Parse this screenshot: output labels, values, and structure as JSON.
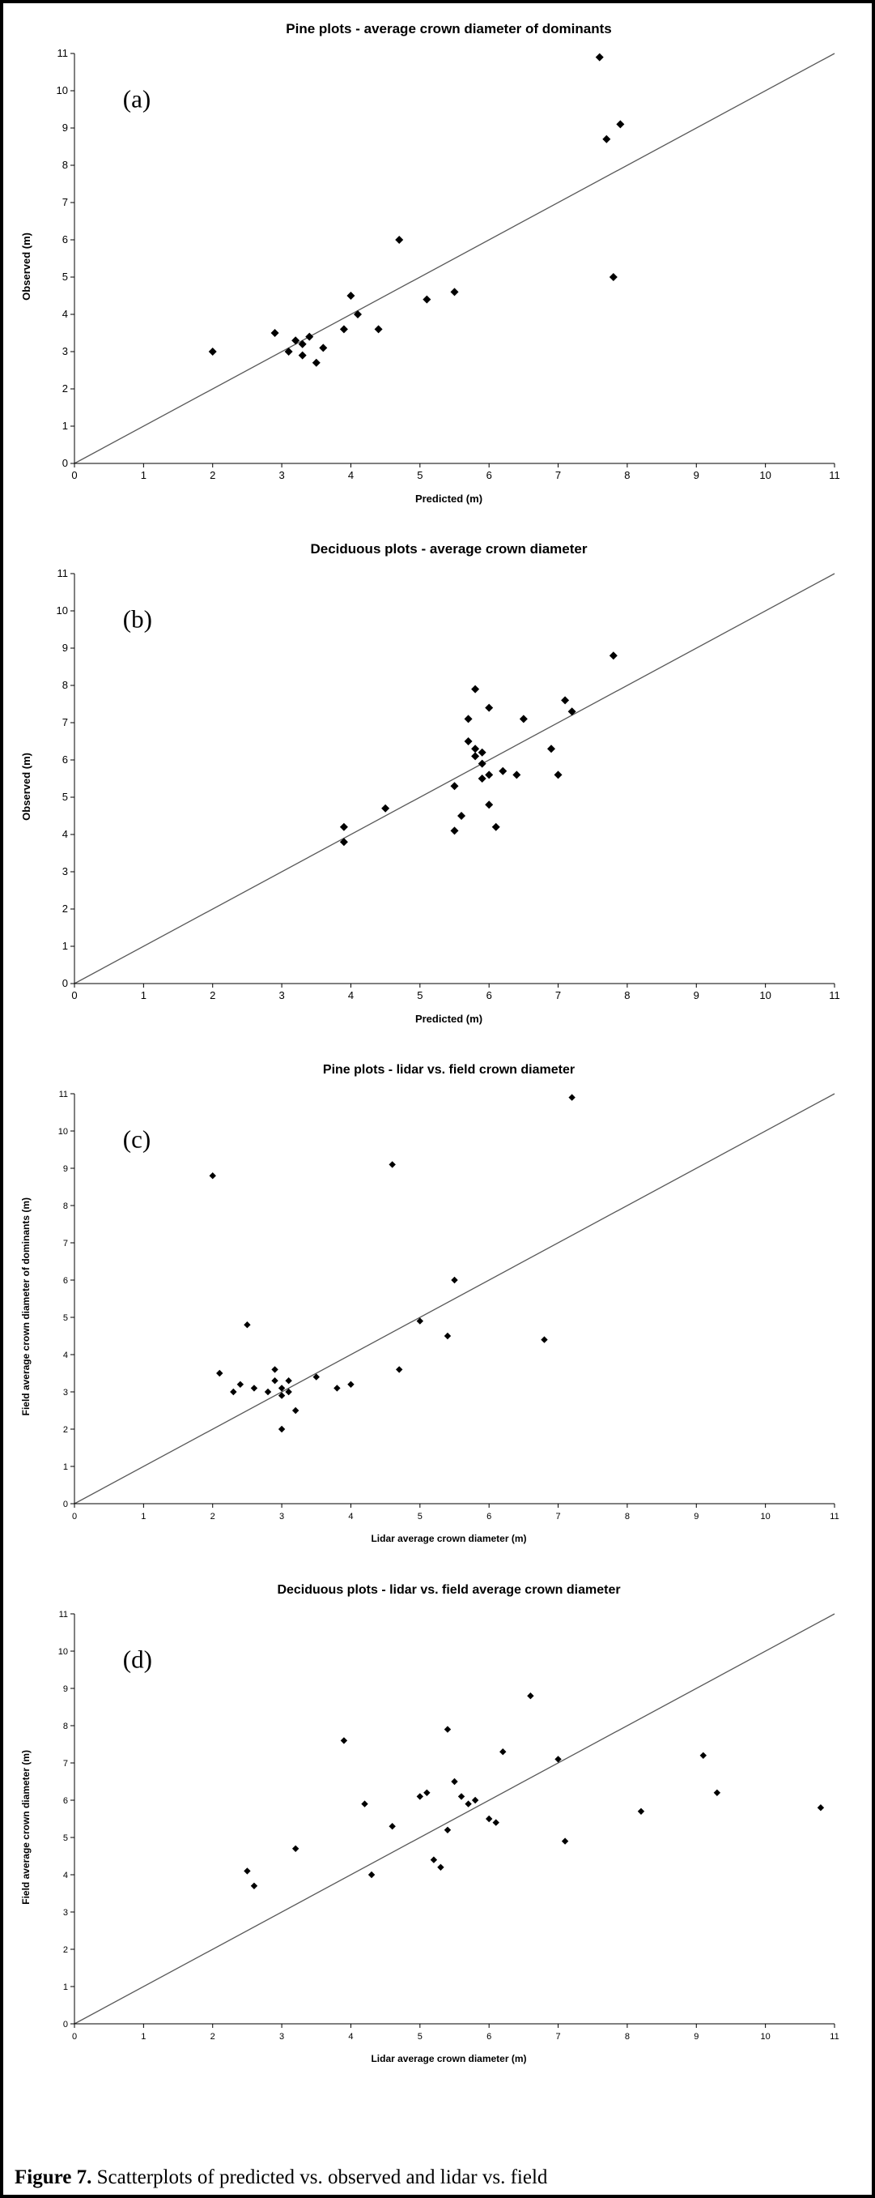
{
  "caption": {
    "label": "Figure 7.",
    "text": "Scatterplots of predicted vs. observed and lidar vs. field"
  },
  "chart_data": [
    {
      "type": "scatter",
      "panel_label": "(a)",
      "title": "Pine plots - average crown diameter of dominants",
      "xlabel": "Predicted (m)",
      "ylabel": "Observed (m)",
      "xlim": [
        0,
        11
      ],
      "ylim": [
        0,
        11
      ],
      "xticks": [
        0,
        1,
        2,
        3,
        4,
        5,
        6,
        7,
        8,
        9,
        10,
        11
      ],
      "yticks": [
        0,
        1,
        2,
        3,
        4,
        5,
        6,
        7,
        8,
        9,
        10,
        11
      ],
      "grid": false,
      "legend": false,
      "identity_line": true,
      "marker": "diamond",
      "marker_color": "#000000",
      "line_color": "#595959",
      "points": [
        [
          2.0,
          3.0
        ],
        [
          2.9,
          3.5
        ],
        [
          3.1,
          3.0
        ],
        [
          3.2,
          3.3
        ],
        [
          3.3,
          2.9
        ],
        [
          3.3,
          3.2
        ],
        [
          3.4,
          3.4
        ],
        [
          3.5,
          2.7
        ],
        [
          3.6,
          3.1
        ],
        [
          3.9,
          3.6
        ],
        [
          4.0,
          4.5
        ],
        [
          4.1,
          4.0
        ],
        [
          4.4,
          3.6
        ],
        [
          4.7,
          6.0
        ],
        [
          5.1,
          4.4
        ],
        [
          5.5,
          4.6
        ],
        [
          7.6,
          10.9
        ],
        [
          7.7,
          8.7
        ],
        [
          7.8,
          5.0
        ],
        [
          7.9,
          9.1
        ]
      ]
    },
    {
      "type": "scatter",
      "panel_label": "(b)",
      "title": "Deciduous plots - average crown diameter",
      "xlabel": "Predicted (m)",
      "ylabel": "Observed (m)",
      "xlim": [
        0,
        11
      ],
      "ylim": [
        0,
        11
      ],
      "xticks": [
        0,
        1,
        2,
        3,
        4,
        5,
        6,
        7,
        8,
        9,
        10,
        11
      ],
      "yticks": [
        0,
        1,
        2,
        3,
        4,
        5,
        6,
        7,
        8,
        9,
        10,
        11
      ],
      "grid": false,
      "legend": false,
      "identity_line": true,
      "marker": "diamond",
      "marker_color": "#000000",
      "line_color": "#595959",
      "points": [
        [
          3.9,
          4.2
        ],
        [
          3.9,
          3.8
        ],
        [
          4.5,
          4.7
        ],
        [
          5.5,
          4.1
        ],
        [
          5.5,
          5.3
        ],
        [
          5.6,
          4.5
        ],
        [
          5.7,
          7.1
        ],
        [
          5.7,
          6.5
        ],
        [
          5.8,
          7.9
        ],
        [
          5.8,
          6.3
        ],
        [
          5.8,
          6.1
        ],
        [
          5.9,
          6.2
        ],
        [
          5.9,
          5.9
        ],
        [
          5.9,
          5.5
        ],
        [
          6.0,
          7.4
        ],
        [
          6.0,
          5.6
        ],
        [
          6.0,
          4.8
        ],
        [
          6.1,
          4.2
        ],
        [
          6.2,
          5.7
        ],
        [
          6.4,
          5.6
        ],
        [
          6.5,
          7.1
        ],
        [
          6.9,
          6.3
        ],
        [
          7.0,
          5.6
        ],
        [
          7.1,
          7.6
        ],
        [
          7.2,
          7.3
        ],
        [
          7.8,
          8.8
        ]
      ]
    },
    {
      "type": "scatter",
      "panel_label": "(c)",
      "title": "Pine plots - lidar vs. field crown diameter",
      "xlabel": "Lidar average crown diameter (m)",
      "ylabel": "Field average crown diameter of dominants (m)",
      "xlim": [
        0,
        11
      ],
      "ylim": [
        0,
        11
      ],
      "xticks": [
        0,
        1,
        2,
        3,
        4,
        5,
        6,
        7,
        8,
        9,
        10,
        11
      ],
      "yticks": [
        0,
        1,
        2,
        3,
        4,
        5,
        6,
        7,
        8,
        9,
        10,
        11
      ],
      "grid": false,
      "legend": false,
      "identity_line": true,
      "marker": "diamond",
      "marker_color": "#000000",
      "line_color": "#595959",
      "points": [
        [
          2.0,
          8.8
        ],
        [
          2.1,
          3.5
        ],
        [
          2.3,
          3.0
        ],
        [
          2.4,
          3.2
        ],
        [
          2.5,
          4.8
        ],
        [
          2.6,
          3.1
        ],
        [
          2.8,
          3.0
        ],
        [
          2.9,
          3.6
        ],
        [
          2.9,
          3.3
        ],
        [
          3.0,
          3.1
        ],
        [
          3.0,
          2.9
        ],
        [
          3.0,
          2.0
        ],
        [
          3.1,
          3.0
        ],
        [
          3.1,
          3.3
        ],
        [
          3.2,
          2.5
        ],
        [
          3.5,
          3.4
        ],
        [
          3.8,
          3.1
        ],
        [
          4.0,
          3.2
        ],
        [
          4.6,
          9.1
        ],
        [
          4.7,
          3.6
        ],
        [
          5.0,
          4.9
        ],
        [
          5.4,
          4.5
        ],
        [
          5.5,
          6.0
        ],
        [
          6.8,
          4.4
        ],
        [
          7.2,
          10.9
        ]
      ]
    },
    {
      "type": "scatter",
      "panel_label": "(d)",
      "title": "Deciduous plots - lidar vs. field average crown diameter",
      "xlabel": "Lidar average crown diameter (m)",
      "ylabel": "Field average crown diameter (m)",
      "xlim": [
        0,
        11
      ],
      "ylim": [
        0,
        11
      ],
      "xticks": [
        0,
        1,
        2,
        3,
        4,
        5,
        6,
        7,
        8,
        9,
        10,
        11
      ],
      "yticks": [
        0,
        1,
        2,
        3,
        4,
        5,
        6,
        7,
        8,
        9,
        10,
        11
      ],
      "grid": false,
      "legend": false,
      "identity_line": true,
      "marker": "diamond",
      "marker_color": "#000000",
      "line_color": "#595959",
      "points": [
        [
          2.5,
          4.1
        ],
        [
          2.6,
          3.7
        ],
        [
          3.2,
          4.7
        ],
        [
          3.9,
          7.6
        ],
        [
          4.2,
          5.9
        ],
        [
          4.3,
          4.0
        ],
        [
          4.6,
          5.3
        ],
        [
          5.0,
          6.1
        ],
        [
          5.1,
          6.2
        ],
        [
          5.2,
          4.4
        ],
        [
          5.3,
          4.2
        ],
        [
          5.4,
          5.2
        ],
        [
          5.4,
          7.9
        ],
        [
          5.5,
          6.5
        ],
        [
          5.6,
          6.1
        ],
        [
          5.7,
          5.9
        ],
        [
          5.8,
          6.0
        ],
        [
          6.0,
          5.5
        ],
        [
          6.1,
          5.4
        ],
        [
          6.2,
          7.3
        ],
        [
          6.6,
          8.8
        ],
        [
          7.0,
          7.1
        ],
        [
          7.1,
          4.9
        ],
        [
          8.2,
          5.7
        ],
        [
          9.1,
          7.2
        ],
        [
          9.3,
          6.2
        ],
        [
          10.8,
          5.8
        ]
      ]
    }
  ]
}
